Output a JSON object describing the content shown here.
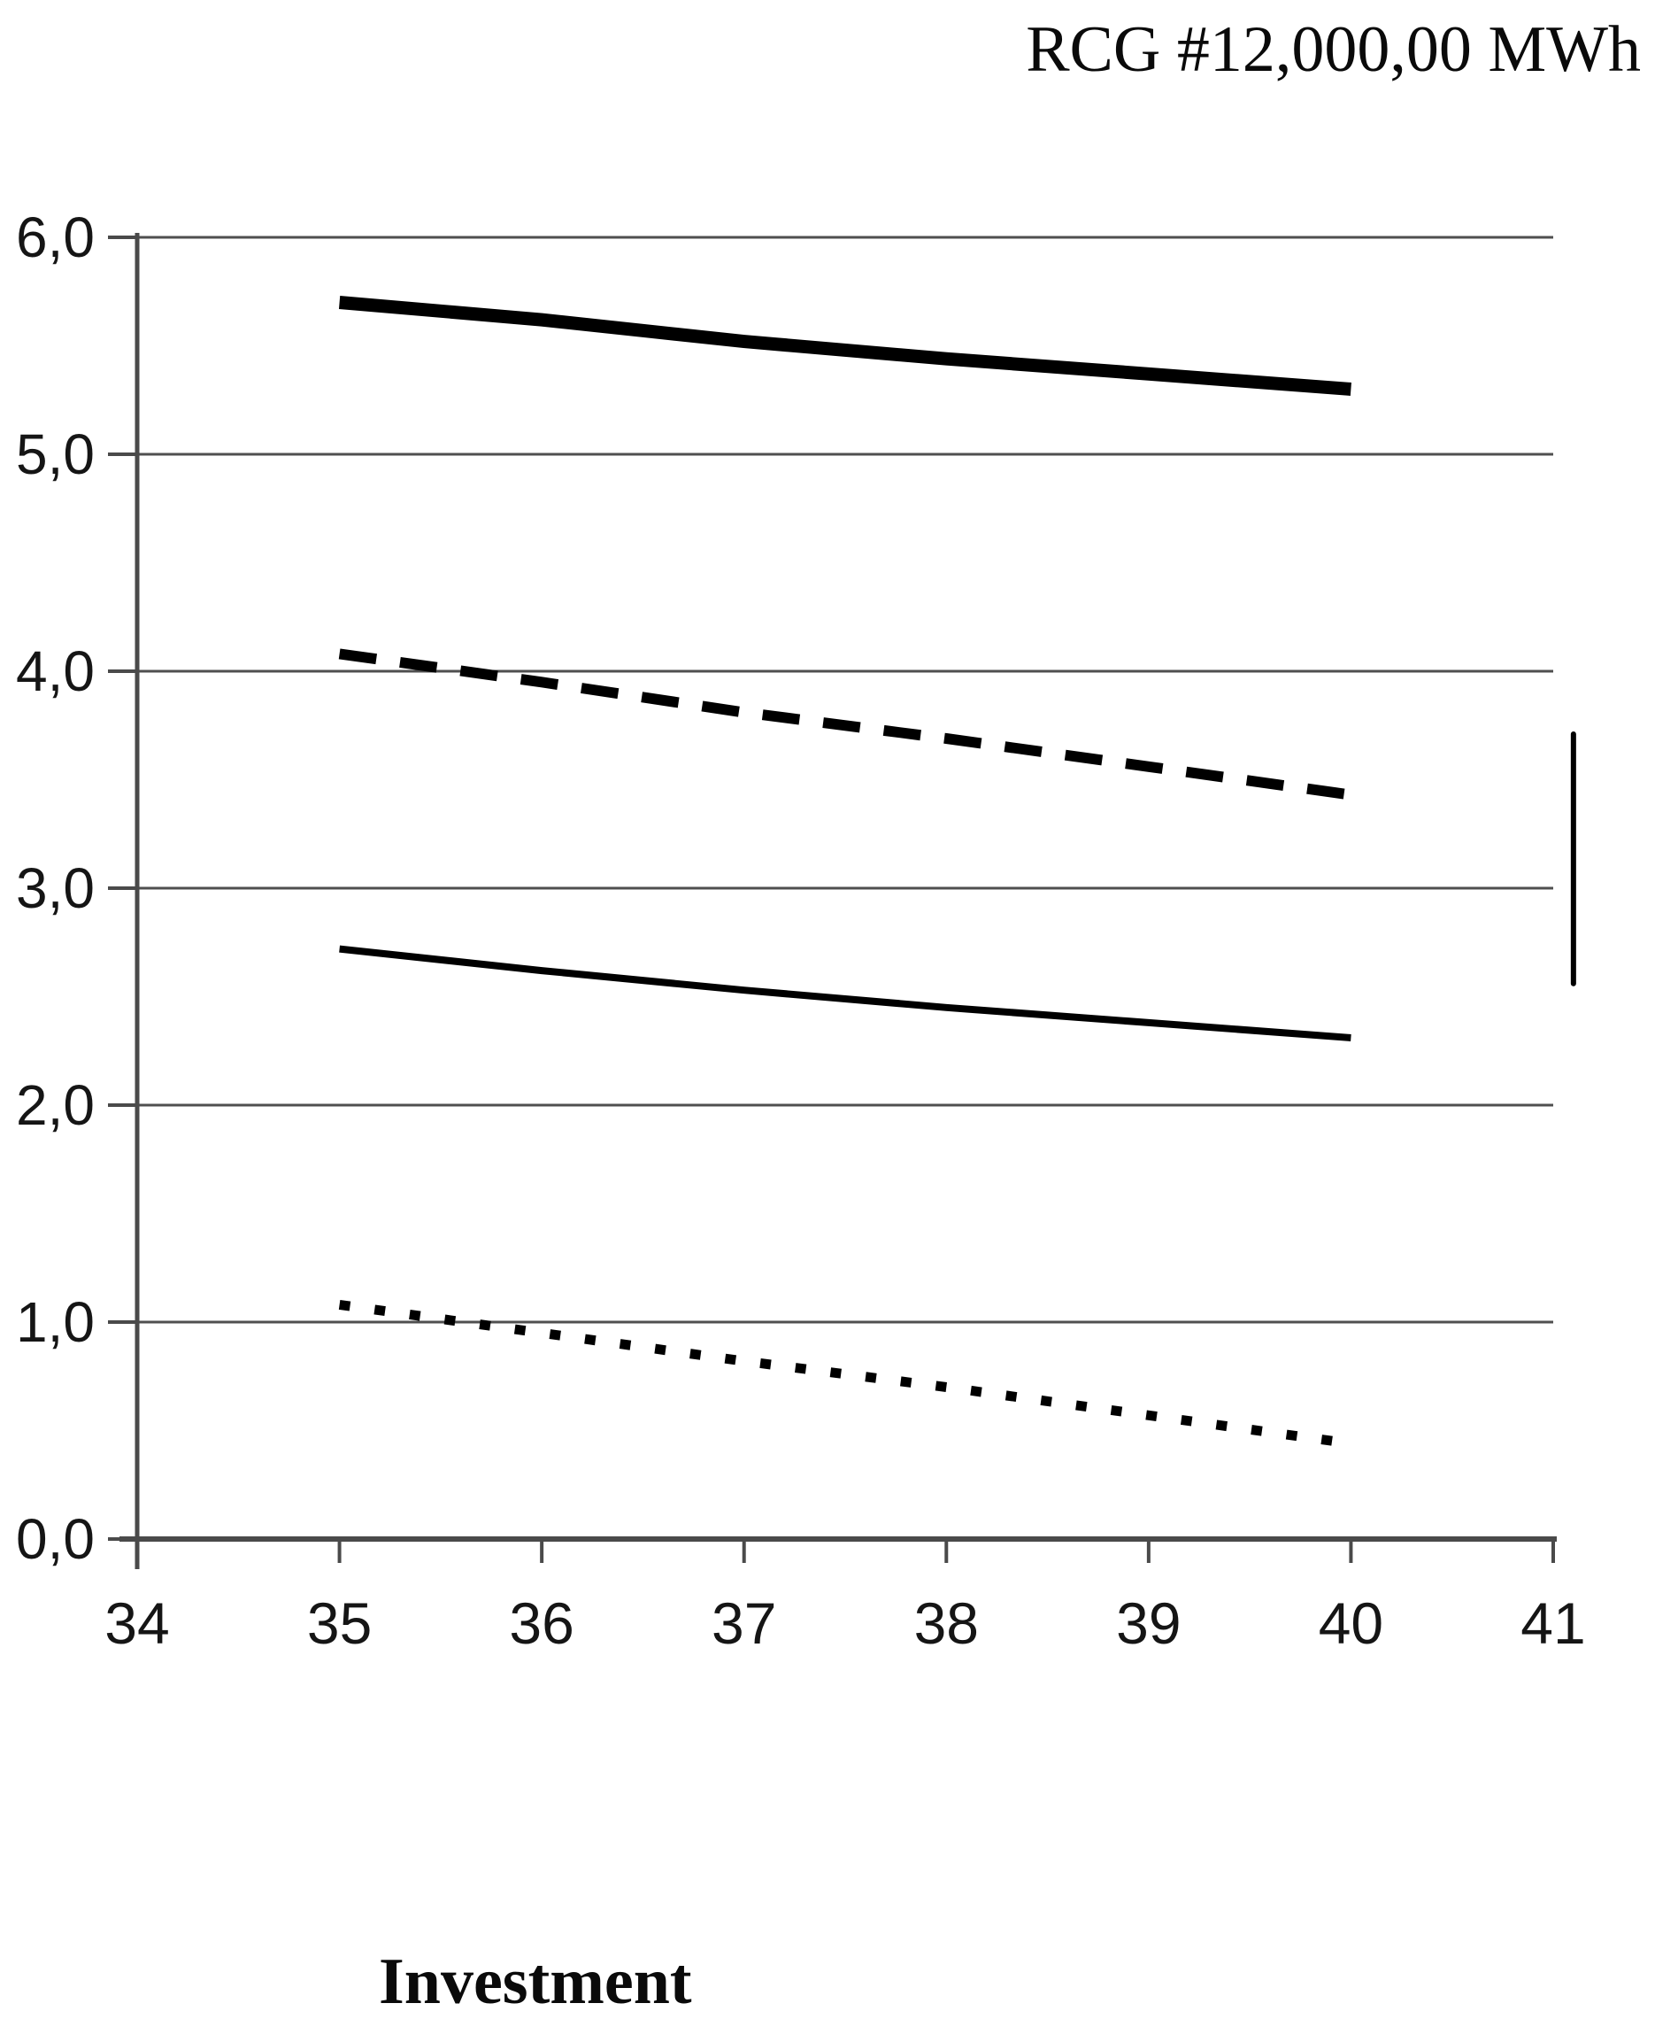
{
  "title": "RCG #12,000,00 MWh",
  "xlabel": "Investment",
  "chart_data": {
    "type": "line",
    "title": "RCG #12,000,00 MWh",
    "xlabel": "Investment",
    "ylabel": "",
    "xlim": [
      34,
      41
    ],
    "ylim": [
      0,
      6
    ],
    "x_ticks": [
      "34",
      "35",
      "36",
      "37",
      "38",
      "39",
      "40",
      "41"
    ],
    "y_ticks": [
      "0,0",
      "1,0",
      "2,0",
      "3,0",
      "4,0",
      "5,0",
      "6,0"
    ],
    "grid": true,
    "legend_position": "none",
    "x": [
      35,
      36,
      37,
      38,
      39,
      40
    ],
    "series": [
      {
        "name": "upper-thick-solid-line",
        "style": "solid-thick",
        "values": [
          5.7,
          5.62,
          5.52,
          5.44,
          5.37,
          5.3
        ]
      },
      {
        "name": "long-dashed-line",
        "style": "dashed",
        "values": [
          4.08,
          3.95,
          3.81,
          3.69,
          3.56,
          3.43
        ]
      },
      {
        "name": "lower-thin-solid-line",
        "style": "solid-thin",
        "values": [
          2.72,
          2.62,
          2.53,
          2.45,
          2.38,
          2.31
        ]
      },
      {
        "name": "dotted-line",
        "style": "dotted",
        "values": [
          1.08,
          0.95,
          0.82,
          0.7,
          0.57,
          0.44
        ]
      }
    ],
    "annotation_segment": {
      "x": 41.1,
      "y_from": 2.56,
      "y_to": 3.71
    },
    "colors": {
      "series_line": "#000000",
      "grid": "#4f4f4f",
      "axis": "#4a4a4a",
      "tick_text": "#151515",
      "background": "#ffffff"
    }
  }
}
